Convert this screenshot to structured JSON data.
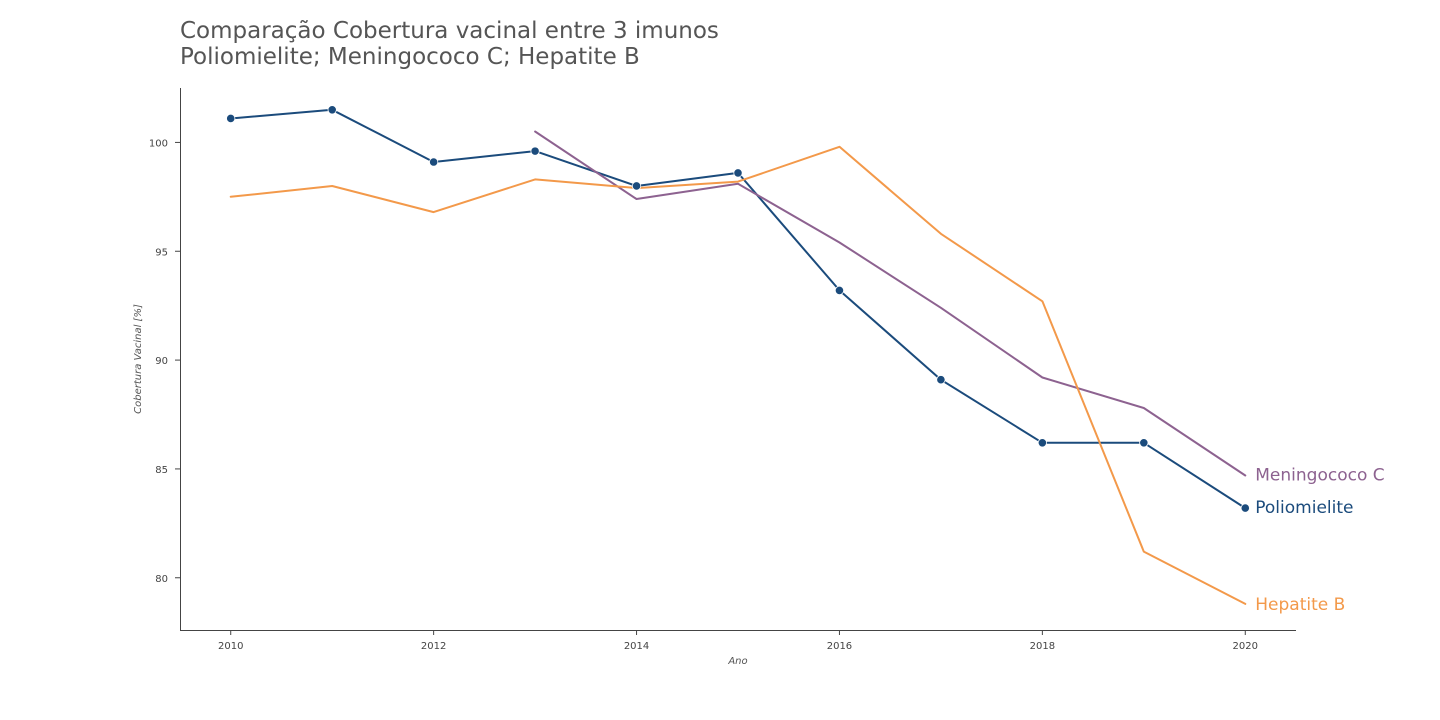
{
  "chart_data": {
    "type": "line",
    "title": "Comparação Cobertura vacinal entre 3 imunos",
    "subtitle": "Poliomielite; Meningococo C; Hepatite B",
    "xlabel": "Ano",
    "ylabel": "Cobertura Vacinal [%]",
    "xlim": [
      2009.5,
      2020.5
    ],
    "ylim": [
      77.6,
      102.5
    ],
    "xticks": [
      2010,
      2012,
      2014,
      2016,
      2018,
      2020
    ],
    "yticks": [
      80,
      85,
      90,
      95,
      100
    ],
    "grid": false,
    "legend": "direct labels at line ends",
    "series": [
      {
        "name": "Poliomielite",
        "color": "#1b4b7c",
        "markers": true,
        "x": [
          2010,
          2011,
          2012,
          2013,
          2014,
          2015,
          2016,
          2017,
          2018,
          2019,
          2020
        ],
        "y": [
          101.1,
          101.5,
          99.1,
          99.6,
          98.0,
          98.6,
          93.2,
          89.1,
          86.2,
          86.2,
          83.2
        ]
      },
      {
        "name": "Meningococo C",
        "color": "#8d6290",
        "markers": false,
        "x": [
          2013,
          2014,
          2015,
          2016,
          2017,
          2018,
          2019,
          2020
        ],
        "y": [
          100.5,
          97.4,
          98.1,
          95.4,
          92.4,
          89.2,
          87.8,
          84.7
        ]
      },
      {
        "name": "Hepatite B",
        "color": "#f3994a",
        "markers": false,
        "x": [
          2010,
          2011,
          2012,
          2013,
          2014,
          2015,
          2016,
          2017,
          2018,
          2019,
          2020
        ],
        "y": [
          97.5,
          98.0,
          96.8,
          98.3,
          97.9,
          98.2,
          99.8,
          95.8,
          92.7,
          81.2,
          78.8
        ]
      }
    ]
  }
}
